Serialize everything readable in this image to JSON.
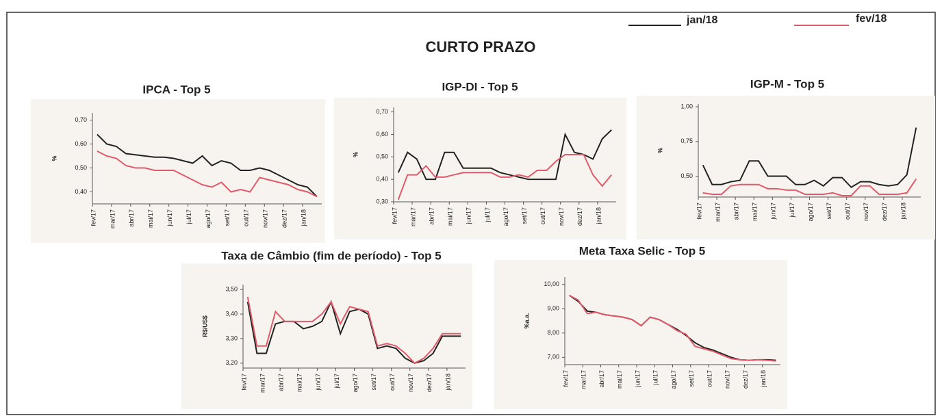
{
  "title": "CURTO PRAZO",
  "chart_data": [
    {
      "type": "line",
      "title": "IPCA - Top 5",
      "y_label": "%",
      "categories": [
        "fev/17",
        null,
        "mar/17",
        null,
        "abr/17",
        null,
        "mai/17",
        null,
        "jun/17",
        null,
        "jul/17",
        null,
        "ago/17",
        null,
        "set/17",
        null,
        "out/17",
        null,
        "nov/17",
        null,
        "dez/17",
        null,
        "jan/18",
        null
      ],
      "series": [
        {
          "name": "jan/18",
          "color": "#222222",
          "values": [
            0.64,
            0.6,
            0.59,
            0.56,
            0.555,
            0.55,
            0.545,
            0.545,
            0.54,
            0.53,
            0.52,
            0.55,
            0.51,
            0.53,
            0.52,
            0.49,
            0.49,
            0.5,
            0.49,
            0.47,
            0.45,
            0.43,
            0.42,
            0.38
          ]
        },
        {
          "name": "fev/18",
          "color": "#e05a6a",
          "values": [
            0.57,
            0.55,
            0.54,
            0.51,
            0.5,
            0.5,
            0.49,
            0.49,
            0.49,
            0.47,
            0.45,
            0.43,
            0.42,
            0.44,
            0.4,
            0.41,
            0.4,
            0.46,
            0.45,
            0.44,
            0.43,
            0.41,
            0.4,
            0.38
          ]
        }
      ],
      "ylim": [
        0.35,
        0.73
      ],
      "yticks": [
        {
          "value": 0.4,
          "label": "0,40"
        },
        {
          "value": 0.5,
          "label": "0,50"
        },
        {
          "value": 0.6,
          "label": "0,60"
        },
        {
          "value": 0.7,
          "label": "0,70"
        }
      ]
    },
    {
      "type": "line",
      "title": "IGP-DI - Top 5",
      "y_label": "%",
      "categories": [
        "fev/17",
        null,
        "mar/17",
        null,
        "abr/17",
        null,
        "mai/17",
        null,
        "jun/17",
        null,
        "jul/17",
        null,
        "ago/17",
        null,
        "set/17",
        null,
        "out/17",
        null,
        "nov/17",
        null,
        "dez/17",
        null,
        "jan/18",
        null
      ],
      "series": [
        {
          "name": "jan/18",
          "color": "#222222",
          "values": [
            0.43,
            0.52,
            0.49,
            0.4,
            0.4,
            0.52,
            0.52,
            0.45,
            0.45,
            0.45,
            0.45,
            0.43,
            0.42,
            0.41,
            0.4,
            0.4,
            0.4,
            0.4,
            0.6,
            0.52,
            0.51,
            0.49,
            0.58,
            0.62
          ]
        },
        {
          "name": "fev/18",
          "color": "#e05a6a",
          "values": [
            0.31,
            0.42,
            0.42,
            0.46,
            0.41,
            0.41,
            0.42,
            0.43,
            0.43,
            0.43,
            0.43,
            0.41,
            0.41,
            0.42,
            0.41,
            0.44,
            0.44,
            0.48,
            0.51,
            0.51,
            0.51,
            0.42,
            0.37,
            0.42
          ]
        }
      ],
      "ylim": [
        0.3,
        0.72
      ],
      "yticks": [
        {
          "value": 0.3,
          "label": "0,30"
        },
        {
          "value": 0.4,
          "label": "0,40"
        },
        {
          "value": 0.5,
          "label": "0,50"
        },
        {
          "value": 0.6,
          "label": "0,60"
        },
        {
          "value": 0.7,
          "label": "0,70"
        }
      ]
    },
    {
      "type": "line",
      "title": "IGP-M - Top 5",
      "y_label": "%",
      "categories": [
        "fev/17",
        null,
        "mar/17",
        null,
        "abr/17",
        null,
        "mai/17",
        null,
        "jun/17",
        null,
        "jul/17",
        null,
        "ago/17",
        null,
        "set/17",
        null,
        "out/17",
        null,
        "nov/17",
        null,
        "dez/17",
        null,
        "jan/18",
        null
      ],
      "series": [
        {
          "name": "jan/18",
          "color": "#222222",
          "values": [
            0.58,
            0.44,
            0.44,
            0.46,
            0.47,
            0.61,
            0.61,
            0.5,
            0.5,
            0.5,
            0.44,
            0.44,
            0.47,
            0.43,
            0.49,
            0.49,
            0.42,
            0.46,
            0.46,
            0.44,
            0.43,
            0.44,
            0.51,
            0.85
          ]
        },
        {
          "name": "fev/18",
          "color": "#e05a6a",
          "values": [
            0.38,
            0.37,
            0.37,
            0.43,
            0.44,
            0.44,
            0.44,
            0.41,
            0.41,
            0.4,
            0.4,
            0.37,
            0.37,
            0.37,
            0.38,
            0.36,
            0.36,
            0.43,
            0.43,
            0.37,
            0.37,
            0.37,
            0.38,
            0.48
          ]
        }
      ],
      "ylim": [
        0.35,
        1.02
      ],
      "yticks": [
        {
          "value": 0.5,
          "label": "0,50"
        },
        {
          "value": 0.75,
          "label": "0,75"
        },
        {
          "value": 1,
          "label": "1,00"
        }
      ]
    },
    {
      "type": "line",
      "title": "Taxa de Câmbio (fim de período) - Top 5",
      "y_label": "R$/US$",
      "categories": [
        "fev/17",
        null,
        "mar/17",
        null,
        "abr/17",
        null,
        "mai/17",
        null,
        "jun/17",
        null,
        "jul/17",
        null,
        "ago/17",
        null,
        "set/17",
        null,
        "out/17",
        null,
        "nov/17",
        null,
        "dez/17",
        null,
        "jan/18",
        null
      ],
      "series": [
        {
          "name": "jan/18",
          "color": "#222222",
          "values": [
            3.45,
            3.24,
            3.24,
            3.36,
            3.37,
            3.37,
            3.34,
            3.35,
            3.37,
            3.45,
            3.32,
            3.41,
            3.42,
            3.4,
            3.26,
            3.27,
            3.26,
            3.22,
            3.2,
            3.21,
            3.24,
            3.31,
            3.31,
            3.31
          ]
        },
        {
          "name": "fev/18",
          "color": "#e05a6a",
          "values": [
            3.47,
            3.27,
            3.27,
            3.41,
            3.37,
            3.37,
            3.37,
            3.37,
            3.4,
            3.45,
            3.36,
            3.43,
            3.42,
            3.41,
            3.27,
            3.28,
            3.27,
            3.24,
            3.2,
            3.22,
            3.26,
            3.32,
            3.32,
            3.32
          ]
        }
      ],
      "ylim": [
        3.18,
        3.52
      ],
      "yticks": [
        {
          "value": 3.2,
          "label": "3,20"
        },
        {
          "value": 3.3,
          "label": "3,30"
        },
        {
          "value": 3.4,
          "label": "3,40"
        },
        {
          "value": 3.5,
          "label": "3,50"
        }
      ]
    },
    {
      "type": "line",
      "title": "Meta Taxa Selic - Top 5",
      "y_label": "%a.a.",
      "categories": [
        "fev/17",
        null,
        "mar/17",
        null,
        "abr/17",
        null,
        "mai/17",
        null,
        "jun/17",
        null,
        "jul/17",
        null,
        "ago/17",
        null,
        "set/17",
        null,
        "out/17",
        null,
        "nov/17",
        null,
        "dez/17",
        null,
        "jan/18",
        null
      ],
      "series": [
        {
          "name": "jan/18",
          "color": "#222222",
          "values": [
            9.55,
            9.3,
            8.9,
            8.85,
            8.75,
            8.7,
            8.65,
            8.55,
            8.3,
            8.65,
            8.55,
            8.35,
            8.15,
            7.9,
            7.6,
            7.4,
            7.3,
            7.15,
            7.0,
            6.9,
            6.88,
            6.9,
            6.9,
            6.88
          ]
        },
        {
          "name": "fev/18",
          "color": "#e05a6a",
          "values": [
            9.55,
            9.35,
            8.8,
            8.85,
            8.75,
            8.7,
            8.65,
            8.55,
            8.3,
            8.65,
            8.55,
            8.35,
            8.1,
            7.95,
            7.45,
            7.35,
            7.25,
            7.1,
            6.95,
            6.9,
            6.88,
            6.9,
            6.88,
            6.85
          ]
        }
      ],
      "ylim": [
        6.7,
        10.3
      ],
      "yticks": [
        {
          "value": 7,
          "label": "7,00"
        },
        {
          "value": 8,
          "label": "8,00"
        },
        {
          "value": 9,
          "label": "9,00"
        },
        {
          "value": 10,
          "label": "10,00"
        }
      ]
    }
  ]
}
